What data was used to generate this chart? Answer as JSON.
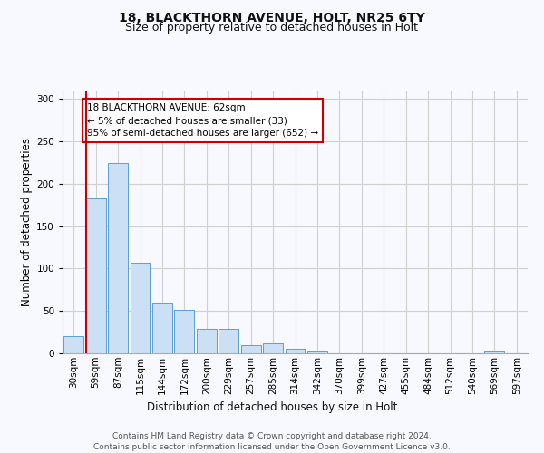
{
  "title_line1": "18, BLACKTHORN AVENUE, HOLT, NR25 6TY",
  "title_line2": "Size of property relative to detached houses in Holt",
  "xlabel": "Distribution of detached houses by size in Holt",
  "ylabel": "Number of detached properties",
  "bar_values": [
    20,
    183,
    224,
    107,
    60,
    51,
    29,
    29,
    10,
    12,
    5,
    3,
    0,
    0,
    0,
    0,
    0,
    0,
    0,
    3,
    0
  ],
  "bar_labels": [
    "30sqm",
    "59sqm",
    "87sqm",
    "115sqm",
    "144sqm",
    "172sqm",
    "200sqm",
    "229sqm",
    "257sqm",
    "285sqm",
    "314sqm",
    "342sqm",
    "370sqm",
    "399sqm",
    "427sqm",
    "455sqm",
    "484sqm",
    "512sqm",
    "540sqm",
    "569sqm",
    "597sqm"
  ],
  "bar_color": "#cce0f5",
  "bar_edge_color": "#5a9fd4",
  "annotation_text": "18 BLACKTHORN AVENUE: 62sqm\n← 5% of detached houses are smaller (33)\n95% of semi-detached houses are larger (652) →",
  "annotation_box_color": "#ffffff",
  "annotation_box_edge_color": "#cc0000",
  "vline_color": "#cc0000",
  "ylim": [
    0,
    310
  ],
  "yticks": [
    0,
    50,
    100,
    150,
    200,
    250,
    300
  ],
  "grid_color": "#d0d0d0",
  "background_color": "#f8f8ff",
  "footer_text": "Contains HM Land Registry data © Crown copyright and database right 2024.\nContains public sector information licensed under the Open Government Licence v3.0.",
  "title_fontsize": 10,
  "subtitle_fontsize": 9,
  "axis_label_fontsize": 8.5,
  "tick_fontsize": 7.5,
  "annotation_fontsize": 7.5,
  "footer_fontsize": 6.5
}
